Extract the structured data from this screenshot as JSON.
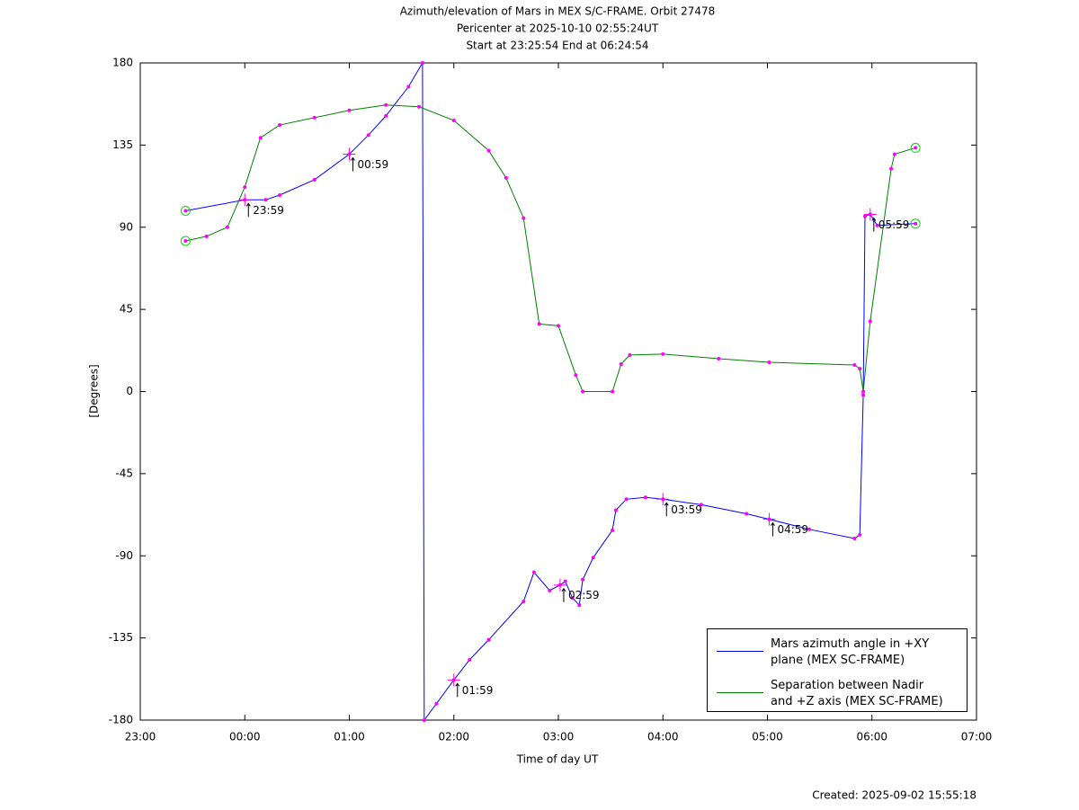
{
  "chart_data": {
    "type": "line",
    "title": "Azimuth/elevation of Mars in MEX S/C-FRAME.  Orbit 27478",
    "subtitle": "Pericenter at 2025-10-10 02:55:24UT",
    "subtitle2": "Start at 23:25:54 End at 06:24:54",
    "x_label": "Time of day UT",
    "y_label": "[Degrees]",
    "footnote": "Created: 2025-09-02 15:55:18",
    "xlim": [
      "23:00",
      "07:00"
    ],
    "xticks": [
      "23:00",
      "00:00",
      "01:00",
      "02:00",
      "03:00",
      "04:00",
      "05:00",
      "06:00",
      "07:00"
    ],
    "ylim": [
      -180,
      180
    ],
    "yticks": [
      180,
      135,
      90,
      45,
      0,
      -45,
      -90,
      -135,
      -180
    ],
    "grid": false,
    "legend": "lower right",
    "marker_color": "#ff00ff",
    "endpoint_color": "#00dd00",
    "series": [
      {
        "name": "Mars azimuth angle in +XY\nplane (MEX SC-FRAME)",
        "color": "#0000ff",
        "x": [
          "23:26",
          "00:00",
          "00:12",
          "00:20",
          "00:40",
          "01:00",
          "01:11",
          "01:21",
          "01:34",
          "01:42",
          "01:43",
          "01:50",
          "02:00",
          "02:09",
          "02:20",
          "02:40",
          "02:46",
          "02:55",
          "03:01",
          "03:04",
          "03:08",
          "03:12",
          "03:14",
          "03:20",
          "03:31",
          "03:33",
          "03:39",
          "03:50",
          "04:00",
          "04:22",
          "04:48",
          "05:01",
          "05:24",
          "05:50",
          "05:53",
          "05:55",
          "05:56",
          "05:59",
          "06:03",
          "06:25"
        ],
        "values": [
          99,
          105,
          105,
          107.6,
          116,
          130,
          140.5,
          151,
          167,
          180,
          -180,
          -171,
          -158,
          -147,
          -136,
          -115,
          -99,
          -109,
          -106,
          -104,
          -113,
          -117,
          -103,
          -91,
          -76,
          -65,
          -59,
          -58,
          -59,
          -62,
          -67,
          -70,
          -75.5,
          -80.5,
          -78.5,
          -2,
          96,
          97,
          91,
          92
        ]
      },
      {
        "name": "Separation between Nadir\nand +Z axis (MEX SC-FRAME)",
        "color": "#008000",
        "x": [
          "23:26",
          "23:38",
          "23:50",
          "00:00",
          "00:09",
          "00:20",
          "00:40",
          "01:00",
          "01:21",
          "01:40",
          "02:00",
          "02:20",
          "02:30",
          "02:40",
          "02:49",
          "03:00",
          "03:10",
          "03:14",
          "03:31",
          "03:36",
          "03:41",
          "04:00",
          "04:32",
          "05:01",
          "05:50",
          "05:53",
          "05:55",
          "05:59",
          "06:11",
          "06:13",
          "06:25"
        ],
        "values": [
          82.5,
          85,
          90,
          112,
          139,
          146,
          150,
          154,
          157,
          156,
          148.5,
          132,
          117,
          95,
          37,
          36,
          9,
          0,
          0,
          15,
          20,
          20.5,
          18,
          16,
          14.5,
          12.5,
          0,
          38.5,
          122,
          130,
          133.5
        ]
      }
    ],
    "annotations": [
      {
        "label": "23:59",
        "x": "00:00",
        "y": 105
      },
      {
        "label": "00:59",
        "x": "01:00",
        "y": 130
      },
      {
        "label": "01:59",
        "x": "02:00",
        "y": -158
      },
      {
        "label": "02:59",
        "x": "03:01",
        "y": -106
      },
      {
        "label": "03:59",
        "x": "04:00",
        "y": -59
      },
      {
        "label": "04:59",
        "x": "05:01",
        "y": -70
      },
      {
        "label": "05:59",
        "x": "05:59",
        "y": 97
      }
    ]
  }
}
